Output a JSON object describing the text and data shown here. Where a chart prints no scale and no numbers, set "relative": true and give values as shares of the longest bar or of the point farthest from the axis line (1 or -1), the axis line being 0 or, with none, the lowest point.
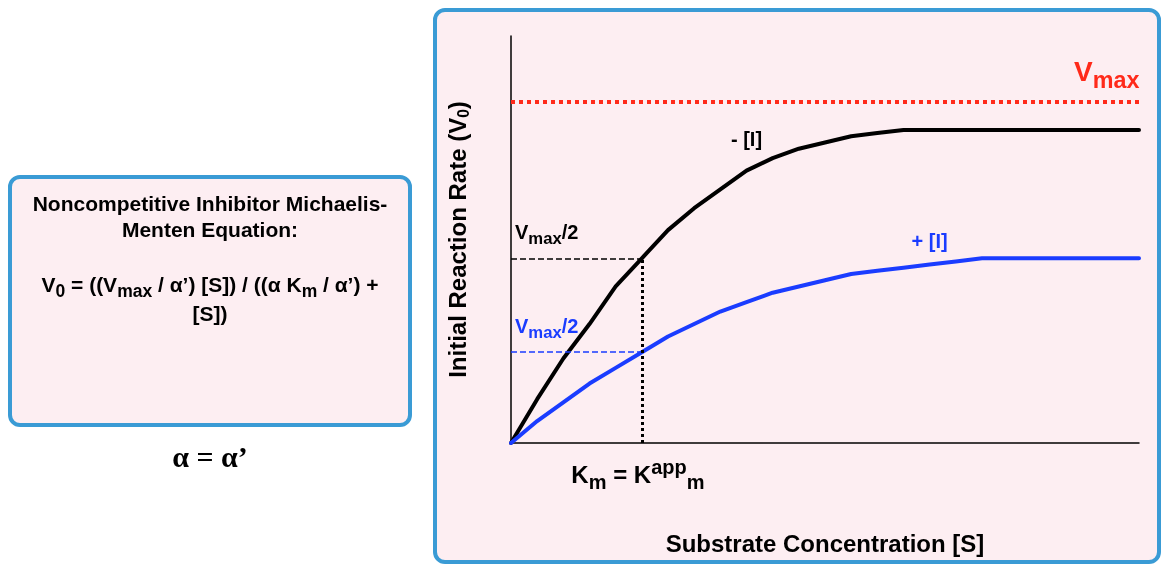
{
  "chart_data": [
    {
      "type": "other",
      "title": "Noncompetitive Inhibitor Michaelis-Menten Equation:",
      "annotations": [
        "V$_{0}$ = ((V$_{max}$ / α’) [S]) / ((α K$_{m}$ / α’) + [S])",
        "α = α’"
      ]
    },
    {
      "type": "line",
      "xlabel": "Substrate Concentration [S]",
      "ylabel": "Initial Reaction Rate (V$_{0}$)",
      "relative": true,
      "categories": [
        null,
        null,
        null,
        null,
        null,
        null,
        null,
        null,
        null,
        null,
        null,
        null,
        null,
        null,
        null,
        null,
        null,
        null,
        null,
        null,
        null,
        null,
        null,
        null,
        null
      ],
      "series": [
        {
          "name": "- [I]",
          "color": "#000000",
          "values": [
            0,
            0.14,
            0.27,
            0.38,
            0.5,
            0.59,
            0.68,
            0.75,
            0.81,
            0.87,
            0.91,
            0.94,
            0.96,
            0.98,
            0.99,
            1,
            1,
            1,
            1,
            1,
            1,
            1,
            1,
            1,
            1
          ]
        },
        {
          "name": "+ [I]",
          "color": "#1a3cff",
          "values": [
            0,
            0.07,
            0.13,
            0.19,
            0.24,
            0.29,
            0.34,
            0.38,
            0.42,
            0.45,
            0.48,
            0.5,
            0.52,
            0.54,
            0.55,
            0.56,
            0.57,
            0.58,
            0.59,
            0.59,
            0.59,
            0.59,
            0.59,
            0.59,
            0.59
          ]
        }
      ],
      "marker": "none",
      "line_style": "solid",
      "grid": false,
      "legend": false,
      "annotations": [
        "K$_{m}$ = K$^{app}$$_{m}$"
      ],
      "ref_lines": [
        {
          "axis": "y",
          "value": 1.09,
          "label": "V$_{max}$",
          "color": "#ff2a1a",
          "line_style": "dotted"
        },
        {
          "axis": "y",
          "value": 0.59,
          "label": "V$_{max}$/2",
          "color": "#000000",
          "line_style": "dashed"
        },
        {
          "axis": "y",
          "value": 0.29,
          "label": "V$_{max}$/2",
          "color": "#1a3cff",
          "line_style": "dashed"
        }
      ]
    }
  ]
}
